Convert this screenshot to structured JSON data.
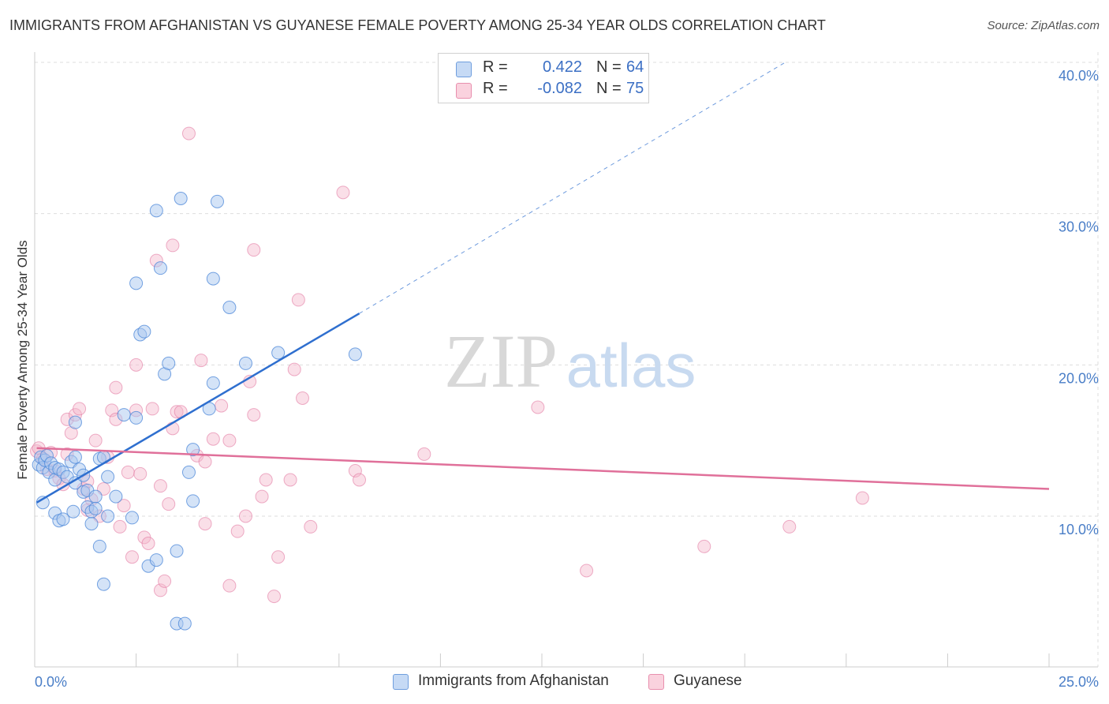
{
  "title": "IMMIGRANTS FROM AFGHANISTAN VS GUYANESE FEMALE POVERTY AMONG 25-34 YEAR OLDS CORRELATION CHART",
  "source": "Source: ZipAtlas.com",
  "watermark": {
    "zip": "ZIP",
    "atlas": "atlas"
  },
  "legend": {
    "rows": [
      {
        "r_label": "R =",
        "r_value": "0.422",
        "n_label": "N =",
        "n_value": "64",
        "color": "#a9c7f0"
      },
      {
        "r_label": "R =",
        "r_value": "-0.082",
        "n_label": "N =",
        "n_value": "75",
        "color": "#f5b8cb"
      }
    ]
  },
  "bottom_legend": {
    "series1": "Immigrants from Afghanistan",
    "series2": "Guyanese"
  },
  "chart_data": {
    "type": "scatter",
    "title": "IMMIGRANTS FROM AFGHANISTAN VS GUYANESE FEMALE POVERTY AMONG 25-34 YEAR OLDS CORRELATION CHART",
    "xlabel": "",
    "ylabel": "Female Poverty Among 25-34 Year Olds",
    "xlim": [
      0,
      25
    ],
    "ylim": [
      0,
      42
    ],
    "x_tick_labels": [
      "0.0%",
      "25.0%"
    ],
    "y_ticks": [
      10,
      20,
      30,
      40
    ],
    "y_tick_labels": [
      "10.0%",
      "20.0%",
      "30.0%",
      "40.0%"
    ],
    "grid": true,
    "colors": {
      "blue": "#4a86d8",
      "blue_fill": "#a9c7f0",
      "pink": "#e0709a",
      "pink_fill": "#f5b8cb",
      "blue_line": "#2f6fcf",
      "pink_line": "#e0709a"
    },
    "series": [
      {
        "name": "Immigrants from Afghanistan",
        "color": "#a9c7f0",
        "trend": {
          "x": [
            0.05,
            8.0
          ],
          "y": [
            10.9,
            23.4
          ],
          "dashed_to": [
            18.5,
            40.0
          ]
        },
        "points": [
          [
            0.1,
            13.4
          ],
          [
            0.15,
            13.9
          ],
          [
            0.2,
            13.2
          ],
          [
            0.25,
            13.7
          ],
          [
            0.3,
            14.0
          ],
          [
            0.35,
            12.9
          ],
          [
            0.4,
            13.5
          ],
          [
            0.5,
            13.2
          ],
          [
            0.5,
            12.4
          ],
          [
            0.6,
            13.1
          ],
          [
            0.7,
            12.9
          ],
          [
            0.8,
            12.6
          ],
          [
            0.9,
            13.6
          ],
          [
            1.0,
            13.9
          ],
          [
            1.0,
            12.2
          ],
          [
            1.1,
            13.1
          ],
          [
            1.2,
            12.7
          ],
          [
            1.2,
            11.6
          ],
          [
            1.3,
            11.7
          ],
          [
            1.3,
            10.6
          ],
          [
            1.4,
            10.3
          ],
          [
            1.5,
            11.3
          ],
          [
            1.5,
            10.5
          ],
          [
            1.6,
            13.8
          ],
          [
            1.7,
            13.9
          ],
          [
            1.8,
            12.6
          ],
          [
            2.0,
            11.3
          ],
          [
            0.2,
            10.9
          ],
          [
            0.5,
            10.2
          ],
          [
            0.6,
            9.7
          ],
          [
            0.7,
            9.8
          ],
          [
            0.95,
            10.3
          ],
          [
            1.4,
            9.5
          ],
          [
            1.8,
            10.0
          ],
          [
            2.4,
            9.9
          ],
          [
            1.6,
            8.0
          ],
          [
            2.8,
            6.7
          ],
          [
            3.0,
            7.1
          ],
          [
            3.5,
            7.7
          ],
          [
            1.7,
            5.5
          ],
          [
            3.5,
            2.9
          ],
          [
            3.7,
            2.9
          ],
          [
            1.0,
            16.2
          ],
          [
            2.2,
            16.7
          ],
          [
            2.5,
            16.5
          ],
          [
            3.2,
            19.4
          ],
          [
            3.3,
            20.1
          ],
          [
            2.6,
            22.0
          ],
          [
            2.7,
            22.2
          ],
          [
            2.5,
            25.4
          ],
          [
            3.1,
            26.4
          ],
          [
            4.4,
            25.7
          ],
          [
            3.0,
            30.2
          ],
          [
            3.6,
            31.0
          ],
          [
            4.5,
            30.8
          ],
          [
            4.8,
            23.8
          ],
          [
            5.2,
            20.1
          ],
          [
            6.0,
            20.8
          ],
          [
            7.9,
            20.7
          ],
          [
            4.3,
            17.1
          ],
          [
            4.4,
            18.8
          ],
          [
            3.9,
            14.4
          ],
          [
            3.8,
            12.9
          ],
          [
            3.9,
            11.0
          ]
        ]
      },
      {
        "name": "Guyanese",
        "color": "#f5b8cb",
        "trend": {
          "x": [
            0.05,
            25.0
          ],
          "y": [
            14.5,
            11.8
          ]
        },
        "points": [
          [
            0.05,
            14.3
          ],
          [
            0.2,
            13.8
          ],
          [
            0.3,
            13.1
          ],
          [
            0.4,
            14.2
          ],
          [
            0.5,
            13.0
          ],
          [
            0.6,
            12.5
          ],
          [
            0.7,
            12.1
          ],
          [
            0.8,
            14.1
          ],
          [
            0.8,
            16.4
          ],
          [
            0.9,
            15.5
          ],
          [
            1.0,
            16.7
          ],
          [
            1.1,
            17.1
          ],
          [
            1.2,
            11.8
          ],
          [
            1.3,
            12.3
          ],
          [
            1.4,
            11.1
          ],
          [
            1.5,
            15.0
          ],
          [
            1.6,
            10.0
          ],
          [
            1.7,
            11.8
          ],
          [
            1.8,
            13.9
          ],
          [
            1.9,
            17.0
          ],
          [
            2.0,
            16.4
          ],
          [
            2.0,
            18.5
          ],
          [
            2.1,
            9.3
          ],
          [
            2.2,
            10.7
          ],
          [
            2.3,
            12.9
          ],
          [
            2.4,
            7.3
          ],
          [
            2.5,
            20.0
          ],
          [
            2.5,
            17.0
          ],
          [
            2.6,
            12.8
          ],
          [
            2.7,
            8.6
          ],
          [
            2.8,
            8.2
          ],
          [
            2.9,
            17.1
          ],
          [
            3.0,
            26.9
          ],
          [
            3.1,
            12.0
          ],
          [
            3.1,
            5.1
          ],
          [
            3.2,
            5.7
          ],
          [
            3.3,
            10.8
          ],
          [
            3.4,
            15.8
          ],
          [
            3.4,
            27.9
          ],
          [
            3.5,
            16.9
          ],
          [
            3.6,
            16.9
          ],
          [
            3.8,
            35.3
          ],
          [
            4.0,
            14.0
          ],
          [
            4.1,
            20.3
          ],
          [
            4.2,
            13.6
          ],
          [
            4.2,
            9.5
          ],
          [
            4.4,
            15.1
          ],
          [
            4.6,
            17.3
          ],
          [
            4.8,
            15.0
          ],
          [
            4.8,
            5.4
          ],
          [
            5.0,
            9.0
          ],
          [
            5.2,
            10.0
          ],
          [
            5.3,
            18.9
          ],
          [
            5.4,
            27.6
          ],
          [
            5.4,
            16.7
          ],
          [
            5.6,
            11.3
          ],
          [
            5.7,
            12.4
          ],
          [
            5.9,
            4.7
          ],
          [
            6.0,
            7.3
          ],
          [
            6.3,
            12.4
          ],
          [
            6.4,
            19.7
          ],
          [
            6.5,
            24.3
          ],
          [
            6.6,
            17.8
          ],
          [
            6.8,
            9.3
          ],
          [
            7.6,
            31.4
          ],
          [
            7.9,
            13.0
          ],
          [
            8.0,
            12.4
          ],
          [
            9.6,
            14.1
          ],
          [
            12.4,
            17.2
          ],
          [
            13.6,
            6.4
          ],
          [
            16.5,
            8.0
          ],
          [
            18.6,
            9.3
          ],
          [
            20.4,
            11.2
          ],
          [
            0.1,
            14.5
          ],
          [
            1.3,
            10.4
          ]
        ]
      }
    ]
  }
}
